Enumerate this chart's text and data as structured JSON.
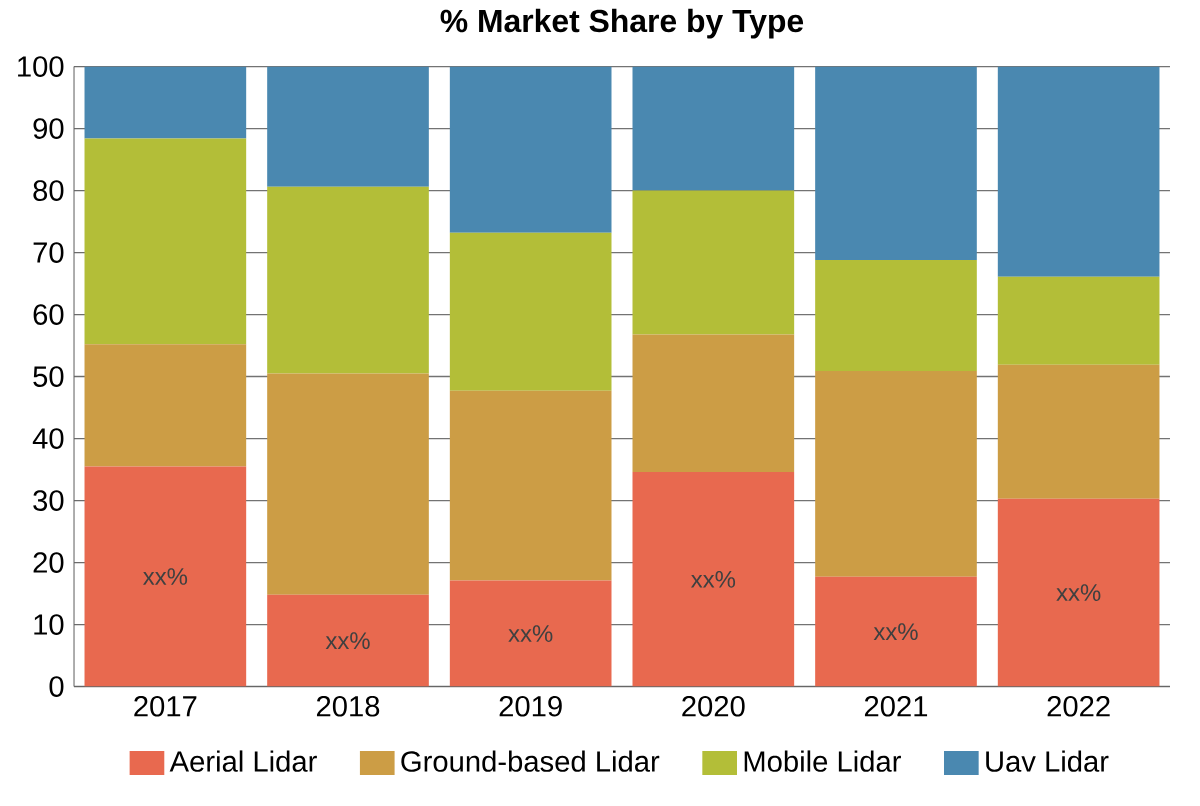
{
  "chart_data": {
    "type": "bar",
    "title": "% Market Share by Type",
    "stacked": true,
    "categories": [
      "2017",
      "2018",
      "2019",
      "2020",
      "2021",
      "2022"
    ],
    "series": [
      {
        "name": "Aerial Lidar",
        "color": "#e8694f",
        "values": [
          35.5,
          14.8,
          17.1,
          34.6,
          17.7,
          30.3
        ],
        "value_labels": [
          "xx%",
          "xx%",
          "xx%",
          "xx%",
          "xx%",
          "xx%"
        ]
      },
      {
        "name": "Ground-based Lidar",
        "color": "#cc9d45",
        "values": [
          19.7,
          35.7,
          30.6,
          22.2,
          33.2,
          21.6
        ]
      },
      {
        "name": "Mobile Lidar",
        "color": "#b3be38",
        "values": [
          33.2,
          30.1,
          25.5,
          23.2,
          17.9,
          14.2
        ]
      },
      {
        "name": "Uav Lidar",
        "color": "#4a88b0",
        "values": [
          11.6,
          19.4,
          26.8,
          20.0,
          31.2,
          33.9
        ]
      }
    ],
    "ylim": [
      0,
      100
    ],
    "yticks": [
      0,
      10,
      20,
      30,
      40,
      50,
      60,
      70,
      80,
      90,
      100
    ],
    "grid": "y",
    "legend": "bottom"
  }
}
